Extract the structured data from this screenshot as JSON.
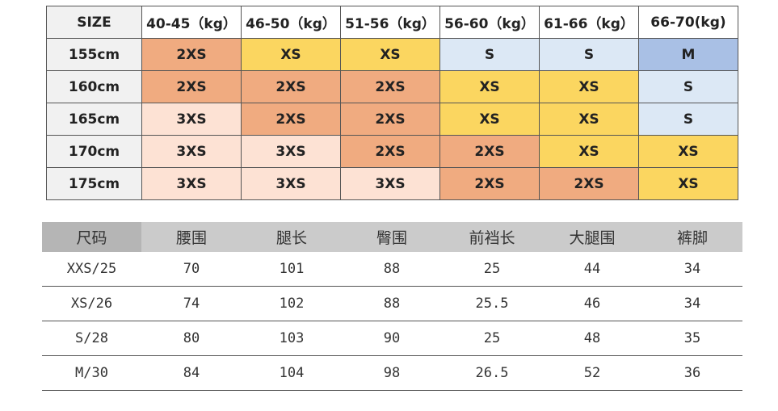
{
  "colors": {
    "O": "#f0ab80",
    "Y": "#fbd660",
    "P": "#fde2d4",
    "B": "#dce8f5",
    "M": "#a9c0e5"
  },
  "size_chart": {
    "header": [
      "SIZE",
      "40-45（kg）",
      "46-50（kg）",
      "51-56（kg）",
      "56-60（kg）",
      "61-66（kg）",
      "66-70(kg)"
    ],
    "rows": [
      {
        "height": "155cm",
        "sizes": [
          "2XS",
          "XS",
          "XS",
          "S",
          "S",
          "M"
        ],
        "colors": [
          "O",
          "Y",
          "Y",
          "B",
          "B",
          "M"
        ]
      },
      {
        "height": "160cm",
        "sizes": [
          "2XS",
          "2XS",
          "2XS",
          "XS",
          "XS",
          "S"
        ],
        "colors": [
          "O",
          "O",
          "O",
          "Y",
          "Y",
          "B"
        ]
      },
      {
        "height": "165cm",
        "sizes": [
          "3XS",
          "2XS",
          "2XS",
          "XS",
          "XS",
          "S"
        ],
        "colors": [
          "P",
          "O",
          "O",
          "Y",
          "Y",
          "B"
        ]
      },
      {
        "height": "170cm",
        "sizes": [
          "3XS",
          "3XS",
          "2XS",
          "2XS",
          "XS",
          "XS"
        ],
        "colors": [
          "P",
          "P",
          "O",
          "O",
          "Y",
          "Y"
        ]
      },
      {
        "height": "175cm",
        "sizes": [
          "3XS",
          "3XS",
          "3XS",
          "2XS",
          "2XS",
          "XS"
        ],
        "colors": [
          "P",
          "P",
          "P",
          "O",
          "O",
          "Y"
        ]
      }
    ]
  },
  "measure_chart": {
    "header": [
      "尺码",
      "腰围",
      "腿长",
      "臀围",
      "前裆长",
      "大腿围",
      "裤脚"
    ],
    "rows": [
      [
        "XXS/25",
        "70",
        "101",
        "88",
        "25",
        "44",
        "34"
      ],
      [
        "XS/26",
        "74",
        "102",
        "88",
        "25.5",
        "46",
        "34"
      ],
      [
        "S/28",
        "80",
        "103",
        "90",
        "25",
        "48",
        "35"
      ],
      [
        "M/30",
        "84",
        "104",
        "98",
        "26.5",
        "52",
        "36"
      ]
    ]
  }
}
